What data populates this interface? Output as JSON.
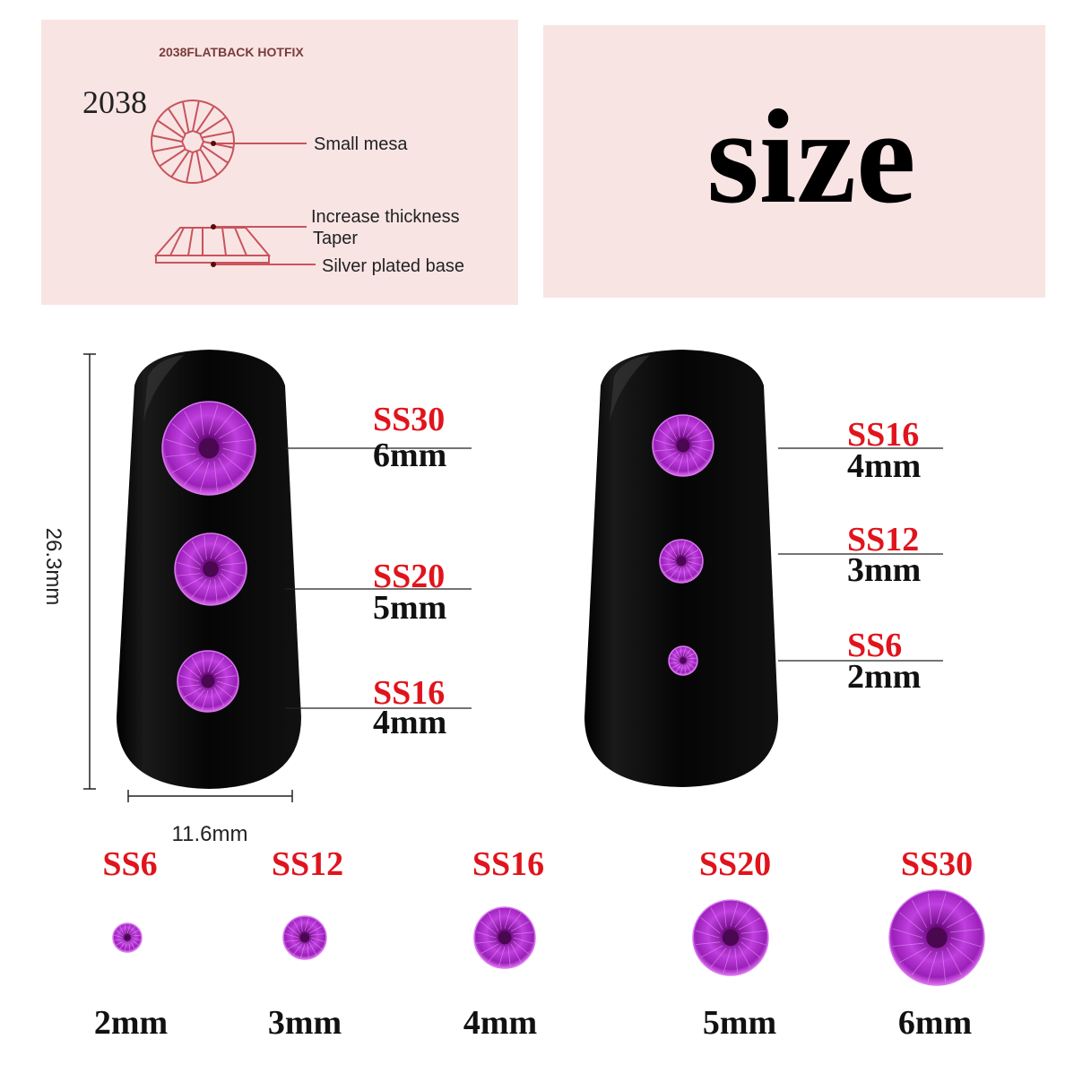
{
  "diagram_panel": {
    "heading": "2038FLATBACK HOTFIX",
    "model": "2038",
    "callouts": [
      "Small mesa",
      "Increase thickness",
      "Taper",
      "Silver plated base"
    ]
  },
  "size_panel": {
    "title": "size"
  },
  "dimensions": {
    "length": "26.3mm",
    "width": "11.6mm"
  },
  "left_nail": [
    {
      "ss": "SS30",
      "mm": "6mm"
    },
    {
      "ss": "SS20",
      "mm": "5mm"
    },
    {
      "ss": "SS16",
      "mm": "4mm"
    }
  ],
  "right_nail": [
    {
      "ss": "SS16",
      "mm": "4mm"
    },
    {
      "ss": "SS12",
      "mm": "3mm"
    },
    {
      "ss": "SS6",
      "mm": "2mm"
    }
  ],
  "size_row": [
    {
      "ss": "SS6",
      "mm": "2mm"
    },
    {
      "ss": "SS12",
      "mm": "3mm"
    },
    {
      "ss": "SS16",
      "mm": "4mm"
    },
    {
      "ss": "SS20",
      "mm": "5mm"
    },
    {
      "ss": "SS30",
      "mm": "6mm"
    }
  ],
  "colors": {
    "panel": "#f9e4e4",
    "label_red": "#e0141c",
    "gem": "#a020c0",
    "diagram_line": "#c8545c",
    "nail": "#0c0c0c"
  }
}
